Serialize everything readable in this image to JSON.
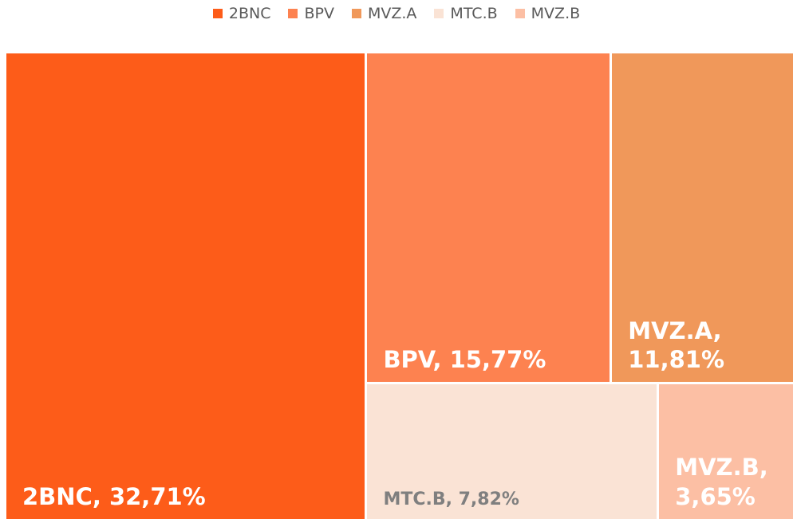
{
  "chart_data": {
    "type": "treemap",
    "categories": [
      "2BNC",
      "BPV",
      "MVZ.A",
      "MTC.B",
      "MVZ.B"
    ],
    "values": [
      32.71,
      15.77,
      11.81,
      7.82,
      3.65
    ],
    "value_labels": [
      "2BNC, 32,71%",
      "BPV, 15,77%",
      "MVZ.A, 11,81%",
      "MTC.B, 7,82%",
      "MVZ.B, 3,65%"
    ],
    "colors": [
      "#fd5c19",
      "#fd8250",
      "#f0985a",
      "#fae3d5",
      "#fcbfa4"
    ],
    "label_colors": [
      "#ffffff",
      "#ffffff",
      "#ffffff",
      "#7f7f7f",
      "#ffffff"
    ],
    "legend": "top"
  }
}
